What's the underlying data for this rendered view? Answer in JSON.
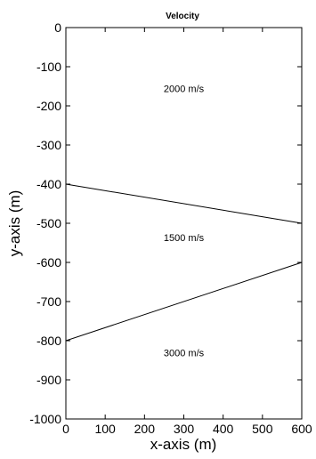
{
  "chart_data": {
    "type": "line",
    "title": "Velocity",
    "xlabel": "x-axis (m)",
    "ylabel": "y-axis (m)",
    "xlim": [
      0,
      600
    ],
    "ylim": [
      -1000,
      0
    ],
    "grid": false,
    "xticks": [
      0,
      100,
      200,
      300,
      400,
      500,
      600
    ],
    "yticks": [
      0,
      -100,
      -200,
      -300,
      -400,
      -500,
      -600,
      -700,
      -800,
      -900,
      -1000
    ],
    "series": [
      {
        "x": [
          0,
          600
        ],
        "y": [
          -400,
          -500
        ]
      },
      {
        "x": [
          0,
          600
        ],
        "y": [
          -800,
          -600
        ]
      }
    ],
    "annotations": [
      {
        "text": "2000 m/s",
        "x": 300,
        "y": -165
      },
      {
        "text": "1500 m/s",
        "x": 300,
        "y": -545
      },
      {
        "text": "3000 m/s",
        "x": 300,
        "y": -840
      }
    ]
  }
}
